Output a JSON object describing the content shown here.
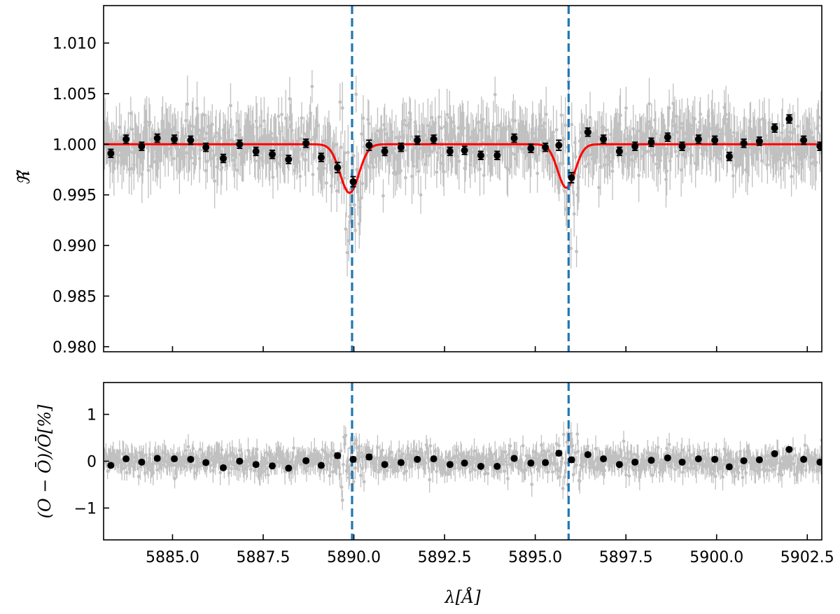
{
  "chart_data": [
    {
      "type": "scatter",
      "panel": "top",
      "ylabel": "ℜ̃",
      "xlim": [
        5883.1,
        5902.9
      ],
      "ylim": [
        0.9795,
        1.0137
      ],
      "xticks": [
        5885.0,
        5887.5,
        5890.0,
        5892.5,
        5895.0,
        5897.5,
        5900.0,
        5902.5
      ],
      "yticks": [
        0.98,
        0.985,
        0.99,
        0.995,
        1.0,
        1.005,
        1.01
      ],
      "ytick_labels": [
        "0.980",
        "0.985",
        "0.990",
        "0.995",
        "1.000",
        "1.005",
        "1.010"
      ],
      "vlines": [
        5889.95,
        5895.92
      ],
      "model": {
        "color": "#ff0000",
        "baseline": 1.0,
        "lines": [
          {
            "center": 5889.88,
            "depth": 0.0048,
            "sigma": 0.26
          },
          {
            "center": 5895.86,
            "depth": 0.0043,
            "sigma": 0.24
          }
        ]
      },
      "binned": {
        "x": [
          5883.3,
          5883.72,
          5884.15,
          5884.58,
          5885.05,
          5885.5,
          5885.92,
          5886.4,
          5886.85,
          5887.3,
          5887.75,
          5888.2,
          5888.68,
          5889.1,
          5889.55,
          5889.98,
          5890.42,
          5890.85,
          5891.3,
          5891.75,
          5892.2,
          5892.65,
          5893.05,
          5893.5,
          5893.95,
          5894.42,
          5894.88,
          5895.28,
          5895.65,
          5896.0,
          5896.45,
          5896.88,
          5897.32,
          5897.75,
          5898.2,
          5898.65,
          5899.05,
          5899.5,
          5899.95,
          5900.35,
          5900.75,
          5901.18,
          5901.6,
          5902.0,
          5902.4,
          5902.85
        ],
        "y": [
          0.9991,
          1.0005,
          0.9998,
          1.0006,
          1.0005,
          1.0004,
          0.9997,
          0.9986,
          1.0,
          0.9993,
          0.999,
          0.9985,
          1.0001,
          0.9987,
          0.9977,
          0.9963,
          0.9999,
          0.9993,
          0.9997,
          1.0004,
          1.0005,
          0.9993,
          0.9994,
          0.9989,
          0.9989,
          1.0006,
          0.9996,
          0.9997,
          0.9999,
          0.9967,
          1.0012,
          1.0005,
          0.9993,
          0.9998,
          1.0002,
          1.0007,
          0.9998,
          1.0005,
          1.0004,
          0.9988,
          1.0001,
          1.0003,
          1.0016,
          1.0025,
          1.0004,
          0.9998
        ],
        "err": [
          0.0004,
          0.0004,
          0.0004,
          0.0004,
          0.0004,
          0.0004,
          0.0004,
          0.0004,
          0.0004,
          0.0004,
          0.0004,
          0.0004,
          0.0004,
          0.0004,
          0.0005,
          0.0005,
          0.0005,
          0.0004,
          0.0004,
          0.0004,
          0.0004,
          0.0004,
          0.0004,
          0.0004,
          0.0004,
          0.0004,
          0.0004,
          0.0004,
          0.0005,
          0.0005,
          0.0004,
          0.0004,
          0.0004,
          0.0004,
          0.0004,
          0.0004,
          0.0004,
          0.0004,
          0.0004,
          0.0004,
          0.0004,
          0.0004,
          0.0004,
          0.0004,
          0.0004,
          0.0004
        ]
      },
      "raw": {
        "color": "#c0c0c0",
        "x_range": [
          5883.1,
          5902.9
        ],
        "n_points": 900,
        "scatter_sd": 0.0025,
        "err_typical": 0.0022
      }
    },
    {
      "type": "scatter",
      "panel": "bottom",
      "xlabel": "λ[Å]",
      "ylabel": "(O − Ō)/Ō[%]",
      "xlim": [
        5883.1,
        5902.9
      ],
      "ylim": [
        -1.68,
        1.68
      ],
      "xticks": [
        5885.0,
        5887.5,
        5890.0,
        5892.5,
        5895.0,
        5897.5,
        5900.0,
        5902.5
      ],
      "xtick_labels": [
        "5885.0",
        "5887.5",
        "5890.0",
        "5892.5",
        "5895.0",
        "5897.5",
        "5900.0",
        "5902.5"
      ],
      "yticks": [
        -1,
        0,
        1
      ],
      "ytick_labels": [
        "−1",
        "0",
        "1"
      ],
      "vlines": [
        5889.95,
        5895.92
      ],
      "binned": {
        "x": [
          5883.3,
          5883.72,
          5884.15,
          5884.58,
          5885.05,
          5885.5,
          5885.92,
          5886.4,
          5886.85,
          5887.3,
          5887.75,
          5888.2,
          5888.68,
          5889.1,
          5889.55,
          5889.98,
          5890.42,
          5890.85,
          5891.3,
          5891.75,
          5892.2,
          5892.65,
          5893.05,
          5893.5,
          5893.95,
          5894.42,
          5894.88,
          5895.28,
          5895.65,
          5896.0,
          5896.45,
          5896.88,
          5897.32,
          5897.75,
          5898.2,
          5898.65,
          5899.05,
          5899.5,
          5899.95,
          5900.35,
          5900.75,
          5901.18,
          5901.6,
          5902.0,
          5902.4,
          5902.85
        ],
        "y": [
          -0.09,
          0.05,
          -0.02,
          0.06,
          0.05,
          0.04,
          -0.03,
          -0.14,
          0.0,
          -0.07,
          -0.1,
          -0.15,
          0.01,
          -0.09,
          0.12,
          0.04,
          0.09,
          -0.07,
          -0.03,
          0.04,
          0.05,
          -0.07,
          -0.04,
          -0.11,
          -0.11,
          0.06,
          -0.04,
          -0.03,
          0.17,
          0.03,
          0.14,
          0.05,
          -0.07,
          -0.02,
          0.02,
          0.07,
          -0.02,
          0.05,
          0.04,
          -0.12,
          0.01,
          0.03,
          0.16,
          0.25,
          0.04,
          -0.02
        ],
        "err": [
          0.04,
          0.04,
          0.04,
          0.04,
          0.04,
          0.04,
          0.04,
          0.04,
          0.04,
          0.04,
          0.04,
          0.04,
          0.04,
          0.04,
          0.05,
          0.05,
          0.05,
          0.04,
          0.04,
          0.04,
          0.04,
          0.04,
          0.04,
          0.04,
          0.04,
          0.04,
          0.04,
          0.04,
          0.05,
          0.05,
          0.04,
          0.04,
          0.04,
          0.04,
          0.04,
          0.04,
          0.04,
          0.04,
          0.04,
          0.04,
          0.04,
          0.04,
          0.04,
          0.04,
          0.04,
          0.04
        ]
      },
      "raw": {
        "color": "#c0c0c0",
        "x_range": [
          5883.1,
          5902.9
        ],
        "n_points": 900,
        "scatter_sd": 0.22,
        "err_typical": 0.22
      }
    }
  ],
  "colors": {
    "vline": "#1f77b4",
    "binned": "#000000",
    "raw": "#c0c0c0",
    "model": "#ff0000"
  }
}
